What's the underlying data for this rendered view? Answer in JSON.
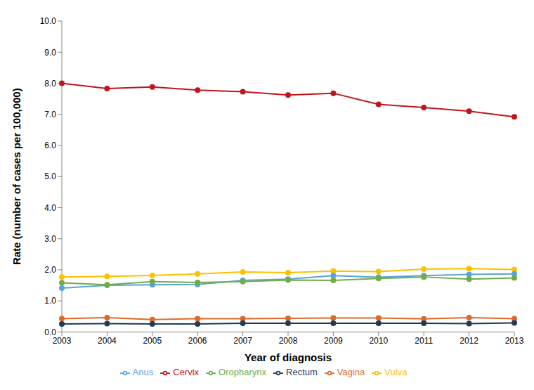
{
  "chart_data": {
    "type": "line",
    "x_label": "Year of diagnosis",
    "y_label": "Rate (number of cases per 100,000)",
    "categories": [
      "2003",
      "2004",
      "2005",
      "2006",
      "2007",
      "2008",
      "2009",
      "2010",
      "2011",
      "2012",
      "2013"
    ],
    "series": [
      {
        "name": "Cervix",
        "color": "#c0161c",
        "values": [
          8.0,
          7.83,
          7.88,
          7.78,
          7.73,
          7.62,
          7.68,
          7.32,
          7.22,
          7.1,
          6.92
        ]
      },
      {
        "name": "Vagina",
        "color": "#dd6a2a",
        "values": [
          0.43,
          0.46,
          0.4,
          0.43,
          0.43,
          0.44,
          0.45,
          0.45,
          0.42,
          0.46,
          0.43
        ]
      },
      {
        "name": "Vulva",
        "color": "#ffc000",
        "values": [
          1.77,
          1.79,
          1.82,
          1.87,
          1.93,
          1.91,
          1.96,
          1.94,
          2.02,
          2.04,
          2.01
        ]
      },
      {
        "name": "Anus",
        "color": "#5ba3d9",
        "values": [
          1.41,
          1.5,
          1.52,
          1.53,
          1.66,
          1.7,
          1.81,
          1.76,
          1.81,
          1.85,
          1.87
        ]
      },
      {
        "name": "Rectum",
        "color": "#1f3b5c",
        "values": [
          0.26,
          0.27,
          0.26,
          0.26,
          0.28,
          0.28,
          0.28,
          0.28,
          0.28,
          0.27,
          0.29
        ]
      },
      {
        "name": "Oropharynx",
        "color": "#70ad47",
        "values": [
          1.58,
          1.52,
          1.62,
          1.59,
          1.62,
          1.67,
          1.66,
          1.72,
          1.77,
          1.7,
          1.74
        ]
      }
    ],
    "ylim": [
      0,
      10
    ],
    "yticks": [
      {
        "value": 0,
        "label": "0.0"
      },
      {
        "value": 1,
        "label": "1.0"
      },
      {
        "value": 2,
        "label": "2.0"
      },
      {
        "value": 3,
        "label": "3.0"
      },
      {
        "value": 4,
        "label": "4.0"
      },
      {
        "value": 5,
        "label": "5.0"
      },
      {
        "value": 6,
        "label": "6.0"
      },
      {
        "value": 7,
        "label": "7.0"
      },
      {
        "value": 8,
        "label": "8.0"
      },
      {
        "value": 9,
        "label": "9.0"
      },
      {
        "value": 10,
        "label": "10.0"
      }
    ],
    "grid": false,
    "legend": "bottom",
    "marker": "circle"
  }
}
